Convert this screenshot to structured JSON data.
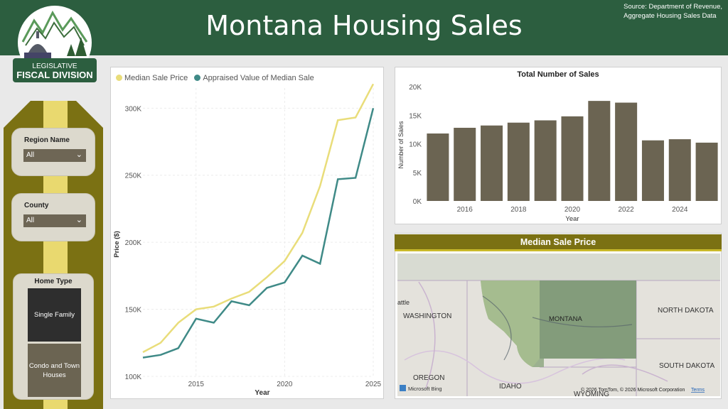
{
  "header": {
    "title": "Montana Housing Sales",
    "source_line1": "Source: Department of Revenue,",
    "source_line2": "Aggregate Housing Sales Data",
    "logo_line1": "LEGISLATIVE",
    "logo_line2": "FISCAL DIVISION"
  },
  "filters": {
    "region": {
      "label": "Region Name",
      "value": "All"
    },
    "county": {
      "label": "County",
      "value": "All"
    },
    "home_type": {
      "label": "Home Type",
      "options": [
        "Single Family",
        "Condo and Town Houses"
      ],
      "selected": "Single Family"
    }
  },
  "colors": {
    "header": "#2c5e3f",
    "accent": "#7b7113",
    "median": "#e9dd7a",
    "appraised": "#3f8a87",
    "bar": "#6b6452"
  },
  "chart_data": [
    {
      "type": "line",
      "title": "",
      "xlabel": "Year",
      "ylabel": "Price ($)",
      "x_ticks": [
        "2015",
        "2020",
        "2025"
      ],
      "y_ticks": [
        "100K",
        "150K",
        "200K",
        "250K",
        "300K"
      ],
      "xlim": [
        2012,
        2025
      ],
      "ylim": [
        100000,
        315000
      ],
      "series": [
        {
          "name": "Median Sale Price",
          "x": [
            2012,
            2013,
            2014,
            2015,
            2016,
            2017,
            2018,
            2019,
            2020,
            2021,
            2022,
            2023,
            2024,
            2025
          ],
          "y": [
            118000,
            125000,
            140000,
            150000,
            152000,
            158000,
            163000,
            174000,
            186000,
            207000,
            242000,
            291000,
            293000,
            318000
          ]
        },
        {
          "name": "Appraised Value of Median Sale",
          "x": [
            2012,
            2013,
            2014,
            2015,
            2016,
            2017,
            2018,
            2019,
            2020,
            2021,
            2022,
            2023,
            2024,
            2025
          ],
          "y": [
            114000,
            116000,
            121000,
            143000,
            140000,
            156000,
            153000,
            166000,
            170000,
            190000,
            184000,
            247000,
            248000,
            300000
          ]
        }
      ]
    },
    {
      "type": "bar",
      "title": "Total Number of Sales",
      "xlabel": "Year",
      "ylabel": "Number of Sales",
      "categories": [
        2015,
        2016,
        2017,
        2018,
        2019,
        2020,
        2021,
        2022,
        2023,
        2024,
        2025
      ],
      "x_ticks": [
        "2016",
        "2018",
        "2020",
        "2022",
        "2024"
      ],
      "y_ticks": [
        "0K",
        "5K",
        "10K",
        "15K",
        "20K"
      ],
      "values": [
        11800,
        12800,
        13200,
        13700,
        14100,
        14800,
        17500,
        17200,
        10600,
        10800,
        10200
      ],
      "ylim": [
        0,
        20000
      ]
    }
  ],
  "map": {
    "title": "Median Sale Price",
    "labels": [
      "attle",
      "WASHINGTON",
      "MONTANA",
      "NORTH DAKOTA",
      "SOUTH DAKOTA",
      "OREGON",
      "IDAHO",
      "WYOMING"
    ],
    "bing": "Microsoft Bing",
    "copyright": "© 2026 TomTom, © 2026 Microsoft Corporation",
    "terms": "Terms"
  }
}
